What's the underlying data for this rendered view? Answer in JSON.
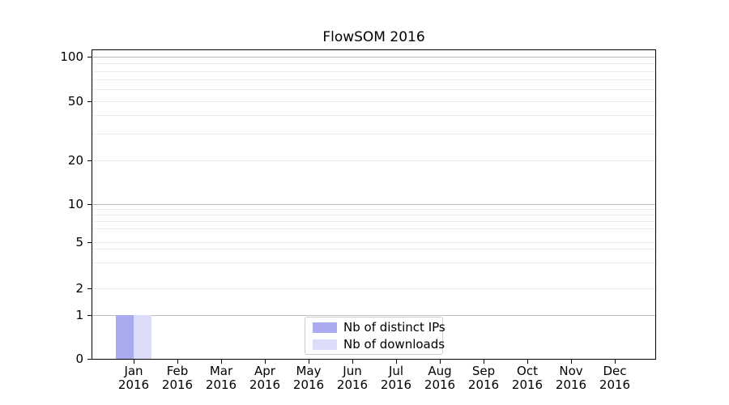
{
  "chart_data": {
    "type": "bar",
    "title": "FlowSOM 2016",
    "categories": [
      "Jan",
      "Feb",
      "Mar",
      "Apr",
      "May",
      "Jun",
      "Jul",
      "Aug",
      "Sep",
      "Oct",
      "Nov",
      "Dec"
    ],
    "category_year": "2016",
    "series": [
      {
        "name": "Nb of distinct IPs",
        "color": "#a9aaf0",
        "values": [
          1,
          0,
          0,
          0,
          0,
          0,
          0,
          0,
          0,
          0,
          0,
          0
        ]
      },
      {
        "name": "Nb of downloads",
        "color": "#dcdcf9",
        "values": [
          1,
          0,
          0,
          0,
          0,
          0,
          0,
          0,
          0,
          0,
          0,
          0
        ]
      }
    ],
    "xlabel": "",
    "ylabel": "",
    "yticks": [
      0,
      1,
      2,
      5,
      10,
      20,
      50,
      100
    ],
    "ylim": [
      0,
      112
    ],
    "scale": "symlog (linear 0-1, logarithmic above 1)",
    "grid": "major gridlines at 1/10/100, faint minor gridlines between",
    "legend_position": "bottom-center inside plot",
    "colors": {
      "major_grid": "#bdbdbd",
      "minor_grid": "#ececec",
      "axis": "#000000",
      "background": "#ffffff",
      "legend_border": "#cccccc"
    }
  }
}
